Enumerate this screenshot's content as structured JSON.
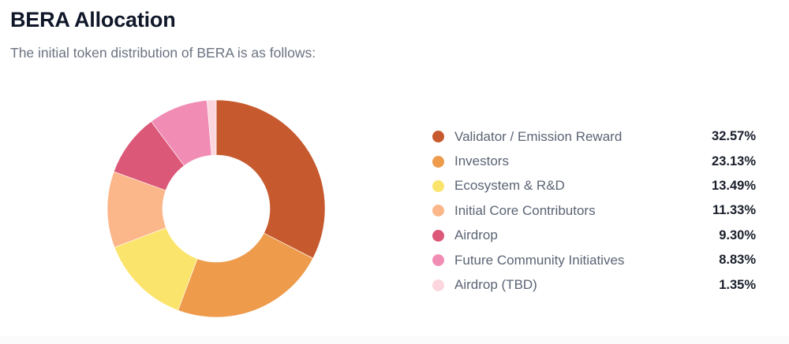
{
  "header": {
    "title": "BERA Allocation",
    "subtitle": "The initial token distribution of BERA is as follows:"
  },
  "chart_data": {
    "type": "pie",
    "variant": "donut",
    "title": "BERA Allocation",
    "categories": [
      "Validator / Emission Reward",
      "Investors",
      "Ecosystem & R&D",
      "Initial Core Contributors",
      "Airdrop",
      "Future Community Initiatives",
      "Airdrop (TBD)"
    ],
    "values": [
      32.57,
      23.13,
      13.49,
      11.33,
      9.3,
      8.83,
      1.35
    ],
    "colors": [
      "#c65a2e",
      "#ee9b4b",
      "#fbe46b",
      "#fbb68a",
      "#dc5878",
      "#f18db5",
      "#fbd6df"
    ],
    "legend_position": "right"
  },
  "legend": {
    "items": [
      {
        "label": "Validator / Emission Reward",
        "value": "32.57%",
        "color": "#c65a2e"
      },
      {
        "label": "Investors",
        "value": "23.13%",
        "color": "#ee9b4b"
      },
      {
        "label": "Ecosystem & R&D",
        "value": "13.49%",
        "color": "#fbe46b"
      },
      {
        "label": "Initial Core Contributors",
        "value": "11.33%",
        "color": "#fbb68a"
      },
      {
        "label": "Airdrop",
        "value": "9.30%",
        "color": "#dc5878"
      },
      {
        "label": "Future Community Initiatives",
        "value": "8.83%",
        "color": "#f18db5"
      },
      {
        "label": "Airdrop (TBD)",
        "value": "1.35%",
        "color": "#fbd6df"
      }
    ]
  }
}
